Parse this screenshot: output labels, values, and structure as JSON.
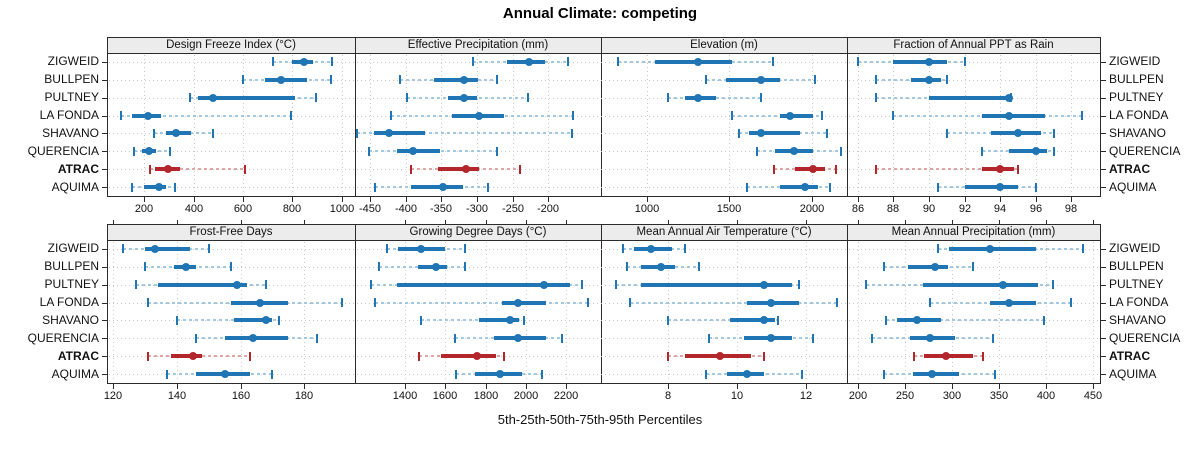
{
  "colors": {
    "series": "#2075b4",
    "series_light": "#a3c8e0",
    "highlight": "#b3262c",
    "highlight_light": "#dfa6a6",
    "grid": "#c8c8c8",
    "strip_bg": "#ececec",
    "border": "#2b2b2b",
    "text": "#111111"
  },
  "chart_data": {
    "type": "dotplot",
    "title": "Annual Climate: competing",
    "caption": "5th-25th-50th-75th-95th Percentiles",
    "percentile_labels": [
      "5th",
      "25th",
      "50th",
      "75th",
      "95th"
    ],
    "sites": [
      "ZIGWEID",
      "BULLPEN",
      "PULTNEY",
      "LA FONDA",
      "SHAVANO",
      "QUERENCIA",
      "ATRAC",
      "AQUIMA"
    ],
    "highlight_site": "ATRAC",
    "legend_position": "none",
    "grid": "dotted",
    "panels": [
      {
        "title": "Design Freeze Index (°C)",
        "row": 0,
        "col": 0,
        "xlim": [
          50,
          1053
        ],
        "ticks": [
          200,
          400,
          600,
          800,
          1000
        ],
        "values": [
          [
            720,
            800,
            845,
            885,
            960
          ],
          [
            600,
            690,
            755,
            860,
            955
          ],
          [
            385,
            420,
            480,
            810,
            895
          ],
          [
            105,
            150,
            215,
            270,
            795
          ],
          [
            240,
            290,
            330,
            390,
            480
          ],
          [
            160,
            190,
            220,
            250,
            305
          ],
          [
            225,
            245,
            295,
            345,
            610
          ],
          [
            150,
            200,
            260,
            290,
            325
          ]
        ]
      },
      {
        "title": "Effective Precipitation (mm)",
        "row": 0,
        "col": 1,
        "xlim": [
          -471,
          -126
        ],
        "ticks": [
          -450,
          -400,
          -350,
          -300,
          -250,
          -200
        ],
        "values": [
          [
            -305,
            -258,
            -227,
            -205,
            -172
          ],
          [
            -408,
            -360,
            -318,
            -298,
            -272
          ],
          [
            -398,
            -340,
            -318,
            -300,
            -228
          ],
          [
            -420,
            -335,
            -297,
            -262,
            -165
          ],
          [
            -468,
            -445,
            -423,
            -373,
            -167
          ],
          [
            -452,
            -412,
            -390,
            -352,
            -272
          ],
          [
            -393,
            -355,
            -315,
            -297,
            -240
          ],
          [
            -443,
            -392,
            -348,
            -320,
            -285
          ]
        ]
      },
      {
        "title": "Elevation (m)",
        "row": 0,
        "col": 2,
        "xlim": [
          723,
          2214
        ],
        "ticks": [
          1000,
          1500,
          2000
        ],
        "values": [
          [
            828,
            1050,
            1310,
            1520,
            1763
          ],
          [
            1360,
            1480,
            1690,
            1810,
            2020
          ],
          [
            1130,
            1230,
            1310,
            1420,
            1690
          ],
          [
            1515,
            1805,
            1870,
            2010,
            2060
          ],
          [
            1560,
            1620,
            1690,
            1930,
            2090
          ],
          [
            1670,
            1780,
            1890,
            2010,
            2180
          ],
          [
            1770,
            1900,
            2010,
            2080,
            2150
          ],
          [
            1610,
            1810,
            1960,
            2040,
            2110
          ]
        ]
      },
      {
        "title": "Fraction of Annual PPT as Rain",
        "row": 0,
        "col": 3,
        "xlim": [
          85.4,
          99.6
        ],
        "ticks": [
          86,
          88,
          90,
          92,
          94,
          96,
          98
        ],
        "values": [
          [
            86,
            88,
            90,
            91,
            92
          ],
          [
            87,
            89,
            90,
            90.7,
            91
          ],
          [
            87,
            90,
            94.5,
            94.5,
            94.6
          ],
          [
            88,
            93,
            94.5,
            96.5,
            98.6
          ],
          [
            91,
            93.5,
            95,
            96.3,
            97
          ],
          [
            93,
            94.5,
            96,
            96.6,
            97
          ],
          [
            87,
            93,
            94,
            94.8,
            95
          ],
          [
            90.5,
            92,
            94,
            95,
            96
          ]
        ]
      },
      {
        "title": "Frost-Free Days",
        "row": 1,
        "col": 0,
        "xlim": [
          118,
          196
        ],
        "ticks": [
          120,
          140,
          160,
          180
        ],
        "values": [
          [
            123,
            130,
            133,
            144,
            150
          ],
          [
            130,
            139,
            143,
            146,
            157
          ],
          [
            127,
            134,
            159,
            162,
            168
          ],
          [
            131,
            157,
            166,
            175,
            192
          ],
          [
            140,
            158,
            168,
            170,
            172
          ],
          [
            146,
            155,
            164,
            175,
            184
          ],
          [
            131,
            138,
            145,
            148,
            163
          ],
          [
            137,
            146,
            155,
            163,
            170
          ]
        ]
      },
      {
        "title": "Growing Degree Days (°C)",
        "row": 1,
        "col": 1,
        "xlim": [
          1150,
          2375
        ],
        "ticks": [
          1400,
          1600,
          1800,
          2000,
          2200
        ],
        "values": [
          [
            1310,
            1365,
            1480,
            1600,
            1700
          ],
          [
            1270,
            1465,
            1555,
            1610,
            1700
          ],
          [
            1230,
            1360,
            2090,
            2220,
            2280
          ],
          [
            1250,
            1880,
            1960,
            2100,
            2310
          ],
          [
            1480,
            1765,
            1920,
            1965,
            1990
          ],
          [
            1650,
            1840,
            1960,
            2100,
            2180
          ],
          [
            1470,
            1580,
            1760,
            1850,
            1890
          ],
          [
            1655,
            1750,
            1870,
            1980,
            2080
          ]
        ]
      },
      {
        "title": "Mean Annual Air Temperature (°C)",
        "row": 1,
        "col": 2,
        "xlim": [
          6.05,
          13.2
        ],
        "ticks": [
          8,
          10,
          12
        ],
        "values": [
          [
            6.7,
            7.0,
            7.5,
            8.1,
            8.5
          ],
          [
            6.8,
            7.2,
            7.8,
            8.2,
            8.9
          ],
          [
            6.5,
            7.2,
            10.8,
            11.6,
            11.8
          ],
          [
            6.9,
            10.3,
            11.0,
            11.8,
            12.9
          ],
          [
            8.0,
            9.8,
            10.8,
            11.1,
            11.2
          ],
          [
            9.2,
            10.2,
            11.0,
            11.6,
            12.2
          ],
          [
            8.0,
            8.5,
            9.5,
            10.4,
            10.8
          ],
          [
            9.1,
            9.7,
            10.3,
            10.8,
            11.9
          ]
        ]
      },
      {
        "title": "Mean Annual Precipitation (mm)",
        "row": 1,
        "col": 3,
        "xlim": [
          188,
          458
        ],
        "ticks": [
          200,
          250,
          300,
          350,
          400,
          450
        ],
        "values": [
          [
            285,
            297,
            341,
            390,
            440
          ],
          [
            228,
            253,
            282,
            296,
            322
          ],
          [
            208,
            269,
            355,
            392,
            408
          ],
          [
            277,
            341,
            361,
            390,
            427
          ],
          [
            230,
            241,
            263,
            288,
            398
          ],
          [
            215,
            255,
            277,
            303,
            344
          ],
          [
            260,
            270,
            294,
            322,
            333
          ],
          [
            228,
            258,
            279,
            308,
            346
          ]
        ]
      }
    ]
  }
}
